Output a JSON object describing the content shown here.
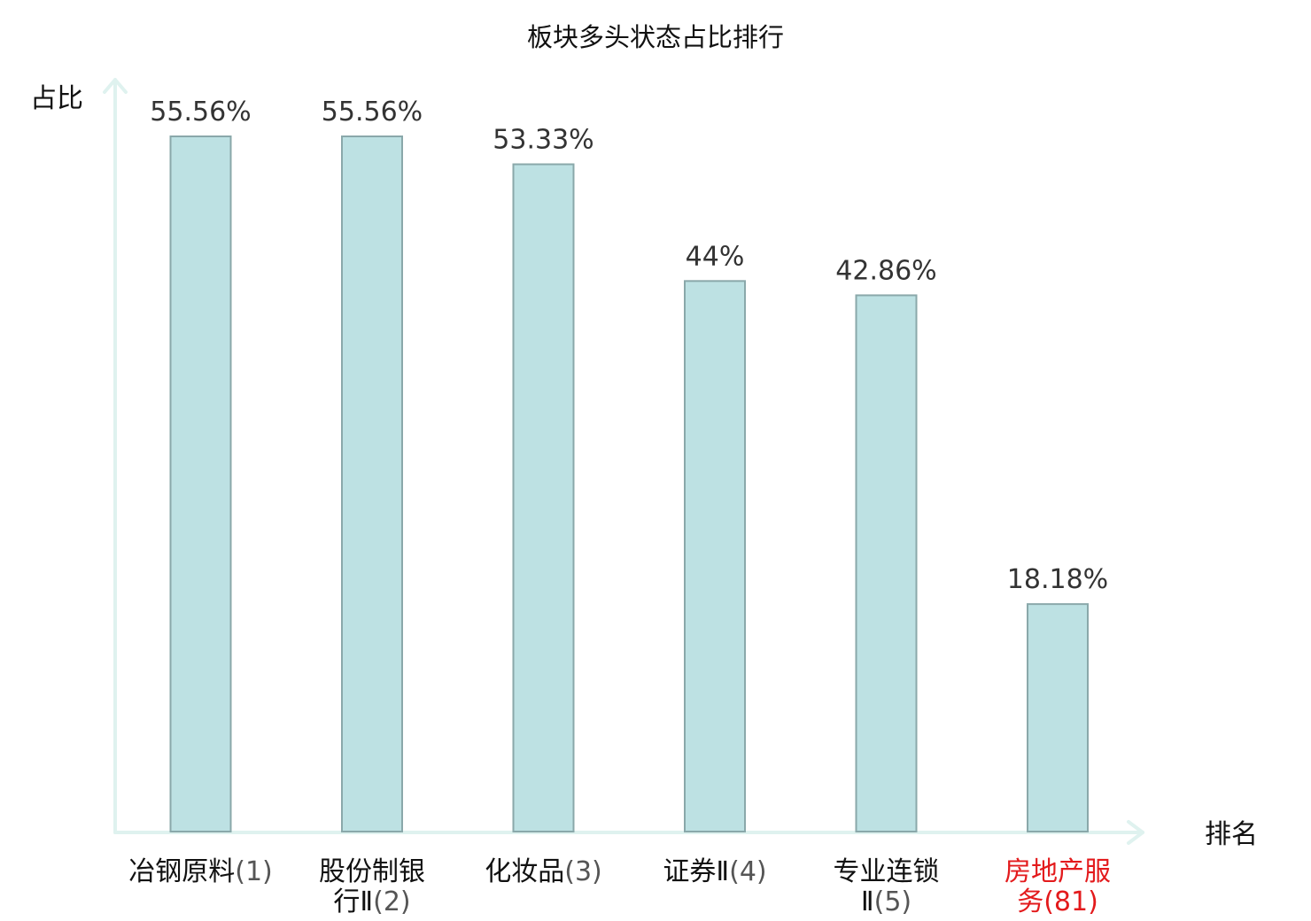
{
  "chart_data": {
    "type": "bar",
    "title": "板块多头状态占比排行",
    "ylabel": "占比",
    "xlabel": "排名",
    "ylim": [
      0,
      60
    ],
    "value_suffix": "%",
    "categories": [
      {
        "lines": [
          "冶钢原料"
        ],
        "rank": "(1)",
        "highlight": false
      },
      {
        "lines": [
          "股份制银",
          "行Ⅱ"
        ],
        "rank": "(2)",
        "highlight": false
      },
      {
        "lines": [
          "化妆品"
        ],
        "rank": "(3)",
        "highlight": false
      },
      {
        "lines": [
          "证券Ⅱ"
        ],
        "rank": "(4)",
        "highlight": false
      },
      {
        "lines": [
          "专业连锁",
          "Ⅱ"
        ],
        "rank": "(5)",
        "highlight": false
      },
      {
        "lines": [
          "房地产服",
          "务"
        ],
        "rank": "(81)",
        "highlight": true
      }
    ],
    "values": [
      55.56,
      55.56,
      53.33,
      44,
      42.86,
      18.18
    ],
    "value_labels": [
      "55.56%",
      "55.56%",
      "53.33%",
      "44%",
      "42.86%",
      "18.18%"
    ],
    "grid": false,
    "legend": "none",
    "colors": {
      "bar_fill": "#bde1e3",
      "bar_stroke": "#8aa8aa",
      "axis": "#dff2ef",
      "highlight_text": "#e31a1c"
    }
  }
}
